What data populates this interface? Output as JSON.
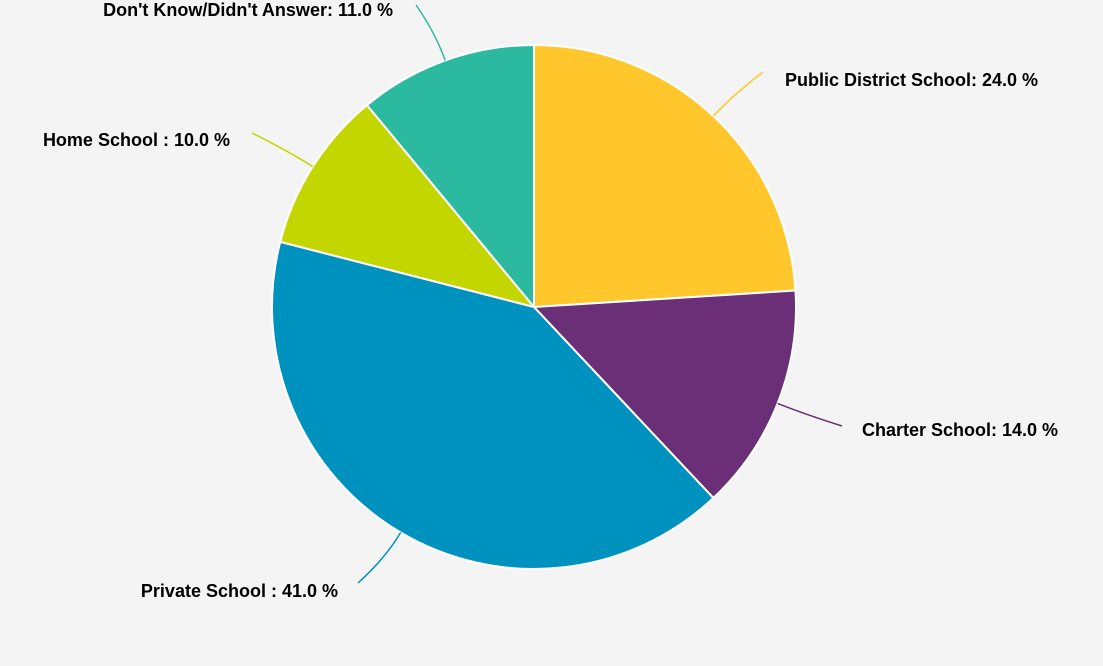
{
  "chart_data": {
    "type": "pie",
    "title": "",
    "slices": [
      {
        "label": "Public District School",
        "value": 24.0,
        "text": "Public District School: 24.0 %",
        "color": "#ffc72c"
      },
      {
        "label": "Charter School",
        "value": 14.0,
        "text": "Charter School: 14.0 %",
        "color": "#6b2f78"
      },
      {
        "label": "Private School",
        "value": 41.0,
        "text": "Private School : 41.0 %",
        "color": "#0092bf"
      },
      {
        "label": "Home School",
        "value": 10.0,
        "text": "Home School : 10.0 %",
        "color": "#c3d600"
      },
      {
        "label": "Don't Know/Didn't Answer",
        "value": 11.0,
        "text": "Don't Know/Didn't Answer: 11.0 %",
        "color": "#2bb9a0"
      }
    ]
  }
}
